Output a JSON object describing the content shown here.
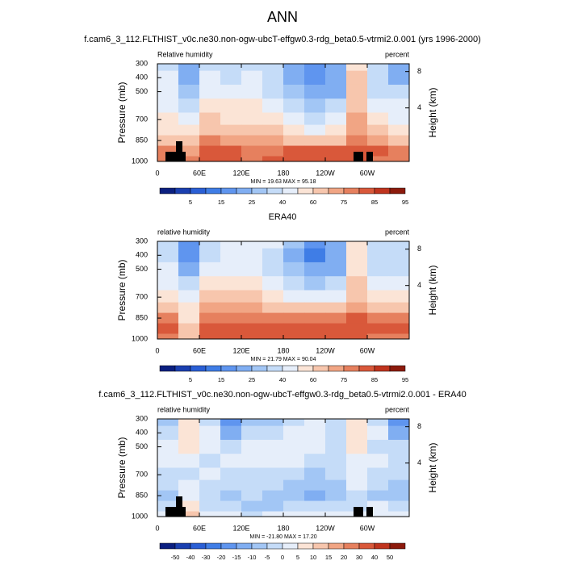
{
  "title": "ANN",
  "chart_data": [
    {
      "type": "heatmap",
      "title": "f.cam6_3_112.FLTHIST_v0c.ne30.non-ogw-ubcT-effgw0.3-rdg_beta0.5-vtrmi2.0.001 (yrs 1996-2000)",
      "left_string": "Relative humidity",
      "right_string": "percent",
      "stats": "MIN = 19.63  MAX = 95.18",
      "ylabel": "Pressure (mb)",
      "y2label": "Height (km)",
      "xlim": [
        0,
        360
      ],
      "xticks": [
        0,
        {
          "value": 60,
          "label": "60E"
        },
        {
          "value": 120,
          "label": "120E"
        },
        180,
        {
          "value": 240,
          "label": "120W"
        },
        {
          "value": 300,
          "label": "60W"
        }
      ],
      "ylim": [
        1000,
        300
      ],
      "yticks": [
        300,
        400,
        500,
        700,
        850,
        1000
      ],
      "y2ticks": [
        4,
        8
      ],
      "x": [
        15,
        45,
        75,
        105,
        135,
        165,
        195,
        225,
        255,
        285,
        315,
        345
      ],
      "y": [
        300,
        400,
        500,
        600,
        700,
        775,
        850,
        925,
        1000
      ],
      "z": [
        [
          45,
          25,
          45,
          40,
          45,
          40,
          30,
          22,
          25,
          65,
          40,
          25
        ],
        [
          50,
          28,
          50,
          45,
          50,
          45,
          30,
          20,
          25,
          70,
          45,
          28
        ],
        [
          50,
          35,
          55,
          50,
          55,
          45,
          35,
          25,
          30,
          70,
          45,
          40
        ],
        [
          55,
          45,
          60,
          60,
          60,
          50,
          45,
          35,
          40,
          72,
          55,
          50
        ],
        [
          60,
          50,
          70,
          65,
          65,
          60,
          55,
          45,
          50,
          75,
          60,
          55
        ],
        [
          65,
          60,
          72,
          70,
          72,
          68,
          62,
          58,
          62,
          78,
          68,
          62
        ],
        [
          72,
          68,
          80,
          75,
          78,
          75,
          72,
          70,
          72,
          80,
          75,
          72
        ],
        [
          82,
          78,
          85,
          85,
          82,
          82,
          85,
          85,
          85,
          85,
          85,
          82
        ],
        [
          82,
          80,
          85,
          85,
          82,
          85,
          88,
          88,
          85,
          85,
          82,
          82
        ]
      ],
      "colorbar": {
        "levels": [
          5,
          15,
          25,
          40,
          60,
          75,
          85,
          95
        ],
        "colors": [
          "#0b1f80",
          "#1a3fb0",
          "#2a5fd5",
          "#3f7de6",
          "#5f95ef",
          "#80aef2",
          "#a2c6f5",
          "#c5dcf8",
          "#e6eefa",
          "#fbe4d6",
          "#f7c6ad",
          "#f1a584",
          "#e6805e",
          "#d9583a",
          "#c0341e",
          "#8c1a0c"
        ]
      }
    },
    {
      "type": "heatmap",
      "title": "ERA40",
      "left_string": "relative humidity",
      "right_string": "percent",
      "stats": "MIN = 21.79  MAX = 90.04",
      "ylabel": "Pressure (mb)",
      "y2label": "Height (km)",
      "xlim": [
        0,
        360
      ],
      "xticks": [
        0,
        {
          "value": 60,
          "label": "60E"
        },
        {
          "value": 120,
          "label": "120E"
        },
        180,
        {
          "value": 240,
          "label": "120W"
        },
        {
          "value": 300,
          "label": "60W"
        }
      ],
      "ylim": [
        1000,
        300
      ],
      "yticks": [
        300,
        400,
        500,
        700,
        850,
        1000
      ],
      "y2ticks": [
        4,
        8
      ],
      "x": [
        15,
        45,
        75,
        105,
        135,
        165,
        195,
        225,
        255,
        285,
        315,
        345
      ],
      "y": [
        300,
        400,
        500,
        600,
        700,
        775,
        850,
        925,
        1000
      ],
      "z": [
        [
          45,
          22,
          45,
          50,
          55,
          50,
          35,
          22,
          30,
          60,
          45,
          45
        ],
        [
          48,
          20,
          48,
          50,
          52,
          45,
          30,
          18,
          28,
          62,
          45,
          45
        ],
        [
          50,
          30,
          55,
          55,
          55,
          45,
          35,
          25,
          32,
          65,
          48,
          45
        ],
        [
          55,
          45,
          62,
          60,
          60,
          50,
          45,
          38,
          42,
          68,
          55,
          52
        ],
        [
          62,
          55,
          70,
          68,
          68,
          62,
          58,
          55,
          55,
          72,
          62,
          60
        ],
        [
          70,
          60,
          75,
          75,
          75,
          72,
          70,
          68,
          68,
          78,
          72,
          70
        ],
        [
          80,
          65,
          82,
          82,
          82,
          82,
          82,
          82,
          82,
          85,
          82,
          82
        ],
        [
          85,
          70,
          88,
          88,
          88,
          88,
          88,
          88,
          88,
          88,
          85,
          85
        ],
        [
          80,
          70,
          85,
          85,
          85,
          85,
          85,
          85,
          85,
          85,
          82,
          82
        ]
      ],
      "colorbar": {
        "levels": [
          5,
          15,
          25,
          40,
          60,
          75,
          85,
          95
        ],
        "colors": [
          "#0b1f80",
          "#1a3fb0",
          "#2a5fd5",
          "#3f7de6",
          "#5f95ef",
          "#80aef2",
          "#a2c6f5",
          "#c5dcf8",
          "#e6eefa",
          "#fbe4d6",
          "#f7c6ad",
          "#f1a584",
          "#e6805e",
          "#d9583a",
          "#c0341e",
          "#8c1a0c"
        ]
      }
    },
    {
      "type": "heatmap",
      "title": "f.cam6_3_112.FLTHIST_v0c.ne30.non-ogw-ubcT-effgw0.3-rdg_beta0.5-vtrmi2.0.001 - ERA40",
      "left_string": "relative humidity",
      "right_string": "percent",
      "stats": "MIN = -21.80  MAX = 17.20",
      "ylabel": "Pressure (mb)",
      "y2label": "Height (km)",
      "xlim": [
        0,
        360
      ],
      "xticks": [
        0,
        {
          "value": 60,
          "label": "60E"
        },
        {
          "value": 120,
          "label": "120E"
        },
        180,
        {
          "value": 240,
          "label": "120W"
        },
        {
          "value": 300,
          "label": "60W"
        }
      ],
      "ylim": [
        1000,
        300
      ],
      "yticks": [
        300,
        400,
        500,
        700,
        850,
        1000
      ],
      "y2ticks": [
        4,
        8
      ],
      "x": [
        15,
        45,
        75,
        105,
        135,
        165,
        195,
        225,
        255,
        285,
        315,
        345
      ],
      "y": [
        300,
        400,
        500,
        600,
        700,
        775,
        850,
        925,
        1000
      ],
      "z": [
        [
          -10,
          5,
          -5,
          -20,
          -10,
          -10,
          -5,
          0,
          -5,
          5,
          -5,
          -20
        ],
        [
          -5,
          8,
          0,
          -15,
          -5,
          -5,
          0,
          2,
          -3,
          8,
          0,
          -15
        ],
        [
          0,
          5,
          0,
          -5,
          0,
          0,
          0,
          0,
          -2,
          5,
          -3,
          -5
        ],
        [
          0,
          0,
          -2,
          0,
          0,
          0,
          0,
          -3,
          -2,
          4,
          0,
          -2
        ],
        [
          -2,
          -5,
          0,
          -3,
          -3,
          -2,
          -3,
          -10,
          -5,
          3,
          -2,
          -5
        ],
        [
          -5,
          0,
          -3,
          -5,
          -3,
          -4,
          -8,
          -10,
          -6,
          0,
          -4,
          -8
        ],
        [
          -8,
          3,
          -2,
          -7,
          -4,
          -7,
          -10,
          -12,
          -10,
          -5,
          -7,
          -10
        ],
        [
          -3,
          8,
          -3,
          -3,
          -6,
          -6,
          -3,
          -3,
          -3,
          -3,
          0,
          -3
        ],
        [
          2,
          10,
          0,
          0,
          -3,
          0,
          3,
          3,
          0,
          0,
          0,
          0
        ]
      ],
      "colorbar": {
        "levels": [
          -50,
          -40,
          -30,
          -20,
          -15,
          -10,
          -5,
          0,
          5,
          10,
          15,
          20,
          30,
          40,
          50
        ],
        "colors": [
          "#0b1f80",
          "#1a3fb0",
          "#2a5fd5",
          "#3f7de6",
          "#5f95ef",
          "#80aef2",
          "#a2c6f5",
          "#c5dcf8",
          "#e6eefa",
          "#fbe4d6",
          "#f7c6ad",
          "#f1a584",
          "#e6805e",
          "#d9583a",
          "#c0341e",
          "#8c1a0c"
        ]
      }
    }
  ]
}
